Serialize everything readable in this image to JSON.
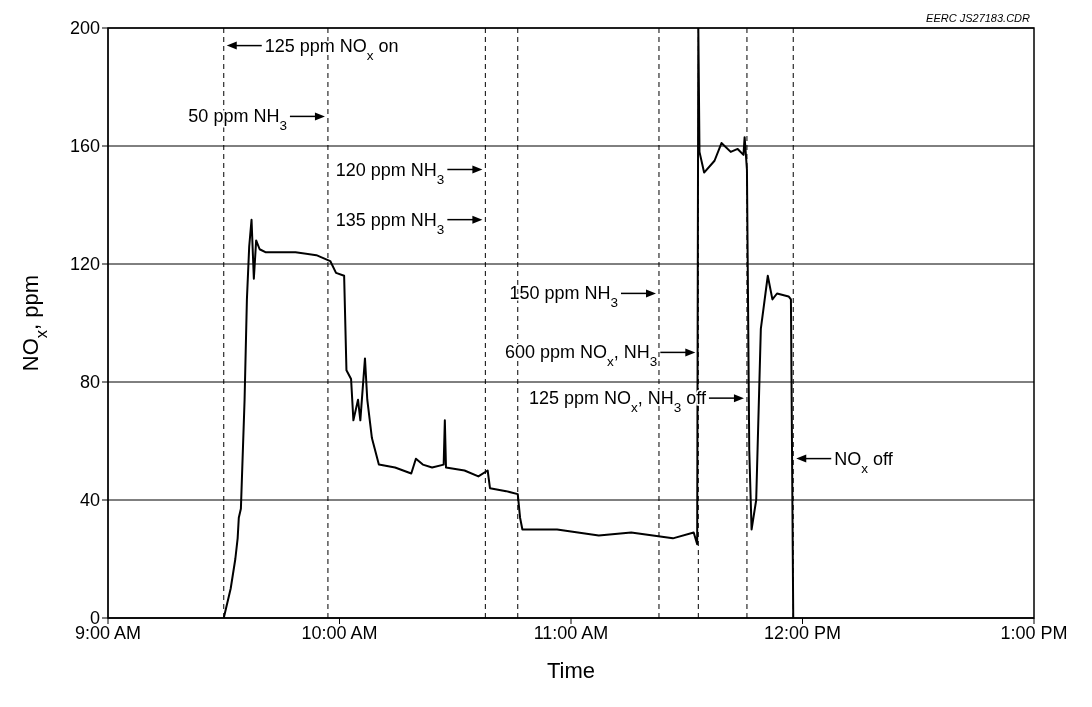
{
  "chart_data": {
    "type": "line",
    "xlabel": "Time",
    "ylabel": "NO$_{x}$, ppm",
    "xlim": [
      9,
      13
    ],
    "ylim": [
      0,
      200
    ],
    "xticks": [
      {
        "value": 9,
        "label": "9:00 AM"
      },
      {
        "value": 10,
        "label": "10:00 AM"
      },
      {
        "value": 11,
        "label": "11:00 AM"
      },
      {
        "value": 12,
        "label": "12:00 PM"
      },
      {
        "value": 13,
        "label": "1:00 PM"
      }
    ],
    "yticks": [
      0,
      40,
      80,
      120,
      160,
      200
    ],
    "grid": "y",
    "marker": "none",
    "line_style": "solid",
    "series": [
      {
        "color": "#000000",
        "x": [
          9.5,
          9.53,
          9.55,
          9.56,
          9.565,
          9.574,
          9.59,
          9.6,
          9.61,
          9.62,
          9.63,
          9.64,
          9.655,
          9.68,
          9.81,
          9.9,
          9.96,
          9.985,
          10.02,
          10.03,
          10.05,
          10.06,
          10.08,
          10.09,
          10.11,
          10.12,
          10.14,
          10.17,
          10.24,
          10.31,
          10.33,
          10.36,
          10.4,
          10.45,
          10.455,
          10.46,
          10.54,
          10.6,
          10.64,
          10.65,
          10.72,
          10.77,
          10.78,
          10.79,
          10.94,
          11.12,
          11.26,
          11.44,
          11.53,
          11.545,
          11.55,
          11.555,
          11.575,
          11.62,
          11.65,
          11.69,
          11.72,
          11.745,
          11.75,
          11.76,
          11.77,
          11.78,
          11.8,
          11.82,
          11.84,
          11.85,
          11.87,
          11.89,
          11.94,
          11.95,
          11.96
        ],
        "values": [
          0,
          10,
          20,
          27,
          34,
          37,
          74,
          108,
          126,
          135,
          115,
          128,
          125,
          124,
          124,
          123,
          121,
          117,
          116,
          84,
          81,
          67,
          74,
          67,
          88,
          74,
          61,
          52,
          51,
          49,
          54,
          52,
          51,
          52,
          67,
          51,
          50,
          48,
          50,
          44,
          43,
          42,
          34,
          30,
          30,
          28,
          29,
          27,
          29,
          25,
          200,
          158,
          151,
          155,
          161,
          158,
          159,
          157,
          163,
          152,
          57,
          30,
          40,
          98,
          110,
          116,
          108,
          110,
          109,
          108,
          0
        ]
      }
    ],
    "ref_lines": [
      {
        "axis": "x",
        "value": 9.5,
        "color": "#000000",
        "line_style": "dashed"
      },
      {
        "axis": "x",
        "value": 9.95,
        "color": "#000000",
        "line_style": "dashed"
      },
      {
        "axis": "x",
        "value": 10.63,
        "color": "#000000",
        "line_style": "dashed"
      },
      {
        "axis": "x",
        "value": 10.77,
        "color": "#000000",
        "line_style": "dashed"
      },
      {
        "axis": "x",
        "value": 11.38,
        "color": "#000000",
        "line_style": "dashed"
      },
      {
        "axis": "x",
        "value": 11.55,
        "color": "#000000",
        "line_style": "dashed"
      },
      {
        "axis": "x",
        "value": 11.76,
        "color": "#000000",
        "line_style": "dashed"
      },
      {
        "axis": "x",
        "value": 11.96,
        "color": "#000000",
        "line_style": "dashed"
      }
    ],
    "annotations": [
      {
        "text": "125 ppm NO$_{x}$ on",
        "x": 9.5,
        "y": 192
      },
      {
        "text": "50 ppm NH$_{3}$",
        "x": 9.95,
        "y": 168
      },
      {
        "text": "120 ppm NH$_{3}$",
        "x": 10.63,
        "y": 150
      },
      {
        "text": "135 ppm NH$_{3}$",
        "x": 10.63,
        "y": 133
      },
      {
        "text": "150 ppm NH$_{3}$",
        "x": 11.38,
        "y": 108
      },
      {
        "text": "600 ppm NO$_{x}$, NH$_{3}$",
        "x": 11.55,
        "y": 88
      },
      {
        "text": "125 ppm NO$_{x}$, NH$_{3}$ off",
        "x": 11.76,
        "y": 72.5
      },
      {
        "text": "NO$_{x}$ off",
        "x": 11.96,
        "y": 52
      },
      "EERC JS27183.CDR"
    ]
  }
}
